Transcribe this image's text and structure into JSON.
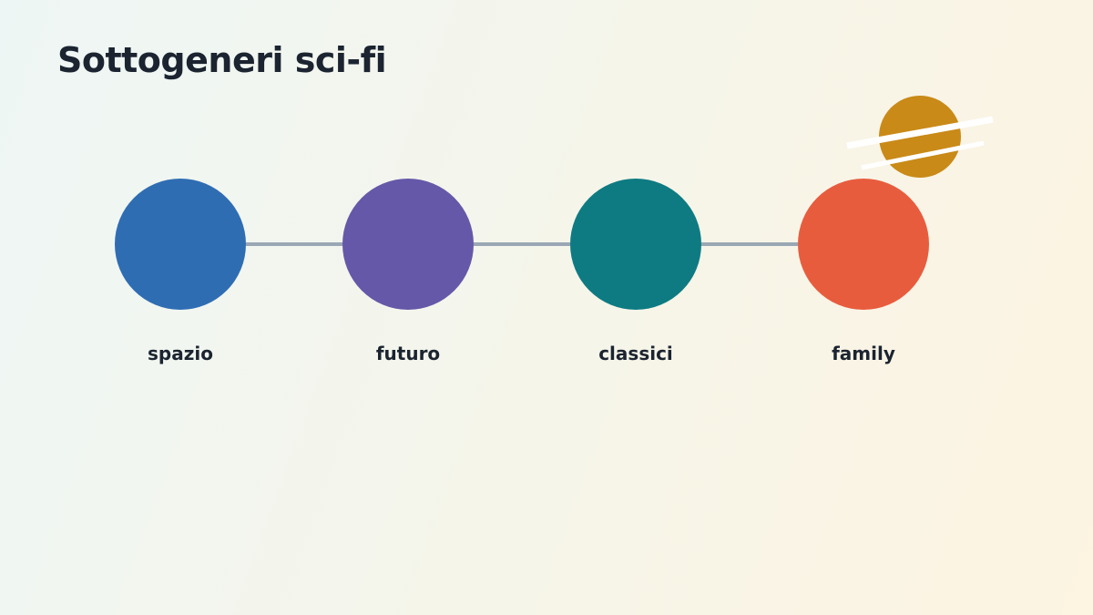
{
  "header": {
    "title": "Sottogeneri sci-fi"
  },
  "nodes": [
    {
      "label": "spazio",
      "color": "#2f6db3"
    },
    {
      "label": "futuro",
      "color": "#6558a8"
    },
    {
      "label": "classici",
      "color": "#0e7b82"
    },
    {
      "label": "family",
      "color": "#e85c3e"
    }
  ]
}
